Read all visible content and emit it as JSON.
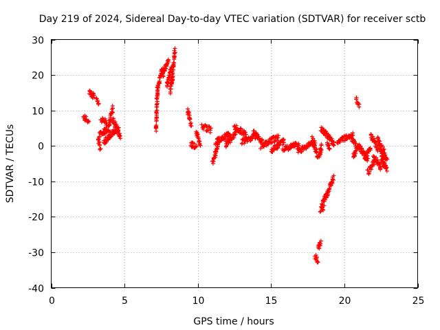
{
  "chart_data": {
    "type": "scatter",
    "title": "Day 219 of 2024, Sidereal Day-to-day VTEC variation (SDTVAR) for receiver sctb",
    "xlabel": "GPS time / hours",
    "ylabel": "SDTVAR / TECUs",
    "xlim": [
      0,
      25
    ],
    "ylim": [
      -40,
      30
    ],
    "x_ticks": [
      0,
      5,
      10,
      15,
      20,
      25
    ],
    "y_ticks": [
      -40,
      -30,
      -20,
      -10,
      0,
      10,
      20,
      30
    ],
    "x_tick_labels": [
      "0",
      "5",
      "10",
      "15",
      "20",
      "25"
    ],
    "y_tick_labels": [
      "-40",
      "-30",
      "-20",
      "-10",
      "0",
      "10",
      "20",
      "30"
    ],
    "grid": true,
    "marker": "plus",
    "color": "#ff0000",
    "segments": [
      {
        "x": [
          2.2,
          2.55
        ],
        "y": [
          8.0,
          7.0
        ]
      },
      {
        "x": [
          2.6,
          2.95
        ],
        "y": [
          15.0,
          14.0
        ]
      },
      {
        "x": [
          3.1,
          3.25
        ],
        "y": [
          13.0,
          12.0
        ]
      },
      {
        "x": [
          3.2,
          3.35
        ],
        "y": [
          2.0,
          -0.5
        ]
      },
      {
        "x": [
          3.3,
          3.9
        ],
        "y": [
          3.0,
          5.0
        ]
      },
      {
        "x": [
          3.4,
          3.8
        ],
        "y": [
          7.5,
          6.5
        ]
      },
      {
        "x": [
          3.6,
          4.0
        ],
        "y": [
          1.0,
          3.0
        ]
      },
      {
        "x": [
          3.9,
          4.2
        ],
        "y": [
          5.0,
          10.5
        ]
      },
      {
        "x": [
          4.0,
          4.6
        ],
        "y": [
          3.0,
          5.0
        ]
      },
      {
        "x": [
          4.2,
          4.7
        ],
        "y": [
          7.5,
          2.5
        ]
      },
      {
        "x": [
          7.15,
          7.25
        ],
        "y": [
          4.5,
          16.0
        ]
      },
      {
        "x": [
          7.25,
          7.6
        ],
        "y": [
          16.0,
          22.0
        ]
      },
      {
        "x": [
          7.6,
          8.0
        ],
        "y": [
          20.0,
          24.5
        ]
      },
      {
        "x": [
          7.9,
          8.2
        ],
        "y": [
          17.0,
          22.0
        ]
      },
      {
        "x": [
          8.1,
          8.3
        ],
        "y": [
          15.5,
          19.0
        ]
      },
      {
        "x": [
          8.2,
          8.45
        ],
        "y": [
          18.0,
          27.0
        ]
      },
      {
        "x": [
          9.3,
          9.55
        ],
        "y": [
          10.0,
          6.0
        ]
      },
      {
        "x": [
          9.5,
          9.9
        ],
        "y": [
          0.5,
          0.0
        ]
      },
      {
        "x": [
          9.9,
          10.15
        ],
        "y": [
          4.0,
          0.5
        ]
      },
      {
        "x": [
          10.3,
          10.9
        ],
        "y": [
          5.5,
          4.5
        ]
      },
      {
        "x": [
          11.0,
          11.4
        ],
        "y": [
          -5.0,
          1.0
        ]
      },
      {
        "x": [
          11.2,
          12.2
        ],
        "y": [
          1.0,
          3.5
        ]
      },
      {
        "x": [
          11.9,
          12.6
        ],
        "y": [
          0.5,
          3.5
        ]
      },
      {
        "x": [
          12.5,
          13.3
        ],
        "y": [
          5.5,
          3.0
        ]
      },
      {
        "x": [
          13.0,
          14.0
        ],
        "y": [
          1.0,
          3.0
        ]
      },
      {
        "x": [
          13.8,
          14.4
        ],
        "y": [
          4.0,
          1.0
        ]
      },
      {
        "x": [
          14.3,
          15.5
        ],
        "y": [
          0.0,
          2.5
        ]
      },
      {
        "x": [
          15.0,
          15.9
        ],
        "y": [
          -1.5,
          1.5
        ]
      },
      {
        "x": [
          15.8,
          16.9
        ],
        "y": [
          -1.0,
          0.5
        ]
      },
      {
        "x": [
          16.8,
          18.0
        ],
        "y": [
          -1.5,
          1.0
        ]
      },
      {
        "x": [
          17.8,
          18.2
        ],
        "y": [
          2.0,
          -3.0
        ]
      },
      {
        "x": [
          18.0,
          18.2
        ],
        "y": [
          -31.0,
          -32.5
        ]
      },
      {
        "x": [
          18.2,
          18.4
        ],
        "y": [
          -29.0,
          -27.0
        ]
      },
      {
        "x": [
          18.3,
          18.45
        ],
        "y": [
          -3.0,
          0.0
        ]
      },
      {
        "x": [
          18.35,
          18.6
        ],
        "y": [
          -18.0,
          -17.5
        ]
      },
      {
        "x": [
          18.45,
          19.25
        ],
        "y": [
          -17.0,
          -9.0
        ]
      },
      {
        "x": [
          18.4,
          19.3
        ],
        "y": [
          5.0,
          0.5
        ]
      },
      {
        "x": [
          18.8,
          19.0
        ],
        "y": [
          0.5,
          -1.0
        ]
      },
      {
        "x": [
          19.5,
          20.6
        ],
        "y": [
          1.5,
          3.0
        ]
      },
      {
        "x": [
          20.5,
          21.0
        ],
        "y": [
          2.0,
          -1.0
        ]
      },
      {
        "x": [
          20.6,
          20.8
        ],
        "y": [
          -3.0,
          -1.5
        ]
      },
      {
        "x": [
          20.8,
          21.0
        ],
        "y": [
          13.0,
          11.5
        ]
      },
      {
        "x": [
          21.0,
          21.6
        ],
        "y": [
          0.0,
          -4.0
        ]
      },
      {
        "x": [
          21.4,
          21.8
        ],
        "y": [
          -3.0,
          -1.0
        ]
      },
      {
        "x": [
          21.6,
          22.1
        ],
        "y": [
          -7.5,
          -4.0
        ]
      },
      {
        "x": [
          21.8,
          22.3
        ],
        "y": [
          3.0,
          -1.0
        ]
      },
      {
        "x": [
          22.0,
          22.5
        ],
        "y": [
          -3.0,
          -6.0
        ]
      },
      {
        "x": [
          22.3,
          22.7
        ],
        "y": [
          2.0,
          -5.0
        ]
      },
      {
        "x": [
          22.5,
          22.9
        ],
        "y": [
          -4.0,
          -6.5
        ]
      },
      {
        "x": [
          22.6,
          22.9
        ],
        "y": [
          -0.5,
          -4.0
        ]
      }
    ]
  }
}
